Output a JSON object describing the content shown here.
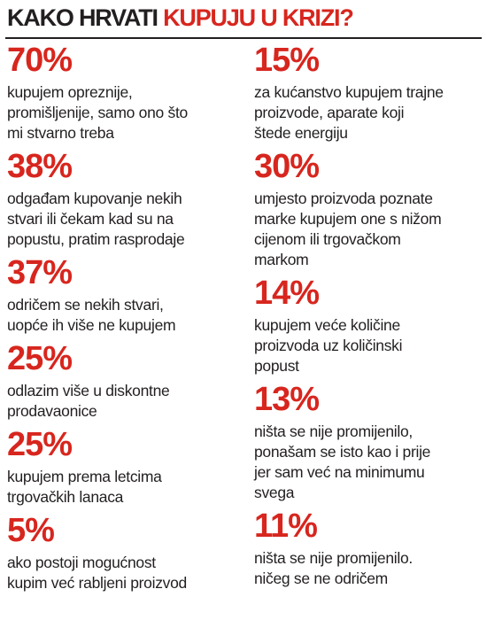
{
  "title": {
    "part1": "KAKO HRVATI ",
    "part2": "KUPUJU U KRIZI?"
  },
  "colors": {
    "accent": "#d7261e",
    "text": "#231f20",
    "background": "#ffffff"
  },
  "left": [
    {
      "pct": "70%",
      "desc": "kupujem opreznije,\npromišljenije, samo ono što\nmi stvarno treba"
    },
    {
      "pct": "38%",
      "desc": "odgađam kupovanje nekih\nstvari ili čekam kad su na\npopustu, pratim rasprodaje"
    },
    {
      "pct": "37%",
      "desc": "odričem se nekih stvari,\nuopće ih više ne kupujem"
    },
    {
      "pct": "25%",
      "desc": "odlazim više u diskontne\nprodavaonice"
    },
    {
      "pct": "25%",
      "desc": "kupujem prema letcima\ntrgovačkih lanaca"
    },
    {
      "pct": "5%",
      "desc": "ako postoji mogućnost\nkupim već rabljeni proizvod"
    }
  ],
  "right": [
    {
      "pct": "15%",
      "desc": "za kućanstvo kupujem trajne\nproizvode, aparate koji\nštede energiju"
    },
    {
      "pct": "30%",
      "desc": "umjesto proizvoda poznate\nmarke kupujem one s nižom\ncijenom ili trgovačkom\nmarkom"
    },
    {
      "pct": "14%",
      "desc": "kupujem veće količine\nproizvoda uz količinski\npopust"
    },
    {
      "pct": "13%",
      "desc": "ništa se nije promijenilo,\nponašam se isto kao i prije\njer sam već na minimumu\nsvega"
    },
    {
      "pct": "11%",
      "desc": "ništa se nije promijenilo.\nničeg se ne odričem"
    }
  ]
}
